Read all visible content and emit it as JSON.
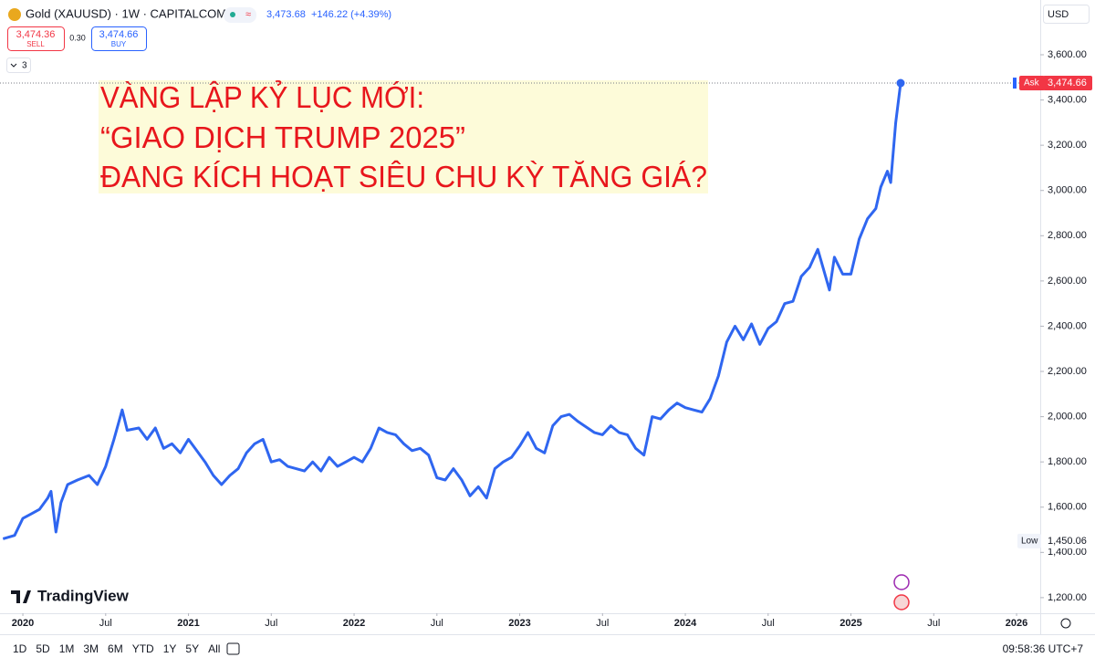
{
  "chart_data": {
    "type": "line",
    "title": "Gold (XAUUSD) · 1W · CAPITALCOM",
    "annotation": [
      "VÀNG LẬP KỶ LỤC MỚI:",
      "“GIAO DỊCH TRUMP 2025”",
      "ĐANG KÍCH HOẠT SIÊU CHU KỲ TĂNG GIÁ?"
    ],
    "currency": "USD",
    "x": [
      2019.88,
      2019.95,
      2020.0,
      2020.05,
      2020.1,
      2020.15,
      2020.17,
      2020.2,
      2020.23,
      2020.27,
      2020.33,
      2020.4,
      2020.45,
      2020.5,
      2020.55,
      2020.6,
      2020.63,
      2020.7,
      2020.75,
      2020.8,
      2020.85,
      2020.9,
      2020.95,
      2021.0,
      2021.05,
      2021.1,
      2021.15,
      2021.2,
      2021.25,
      2021.3,
      2021.35,
      2021.4,
      2021.45,
      2021.5,
      2021.55,
      2021.6,
      2021.7,
      2021.75,
      2021.8,
      2021.85,
      2021.9,
      2021.95,
      2022.0,
      2022.05,
      2022.1,
      2022.15,
      2022.2,
      2022.25,
      2022.3,
      2022.35,
      2022.4,
      2022.45,
      2022.5,
      2022.55,
      2022.6,
      2022.65,
      2022.7,
      2022.75,
      2022.8,
      2022.85,
      2022.9,
      2022.95,
      2023.0,
      2023.05,
      2023.1,
      2023.15,
      2023.2,
      2023.25,
      2023.3,
      2023.35,
      2023.45,
      2023.5,
      2023.55,
      2023.6,
      2023.65,
      2023.7,
      2023.75,
      2023.8,
      2023.85,
      2023.9,
      2023.95,
      2024.0,
      2024.05,
      2024.1,
      2024.15,
      2024.2,
      2024.25,
      2024.3,
      2024.35,
      2024.4,
      2024.45,
      2024.5,
      2024.55,
      2024.6,
      2024.65,
      2024.7,
      2024.75,
      2024.8,
      2024.87,
      2024.9,
      2024.95,
      2025.0,
      2025.05,
      2025.1,
      2025.15,
      2025.18,
      2025.22,
      2025.24,
      2025.27,
      2025.3
    ],
    "series": [
      {
        "color": "#2f66f0",
        "values": [
          1460,
          1475,
          1550,
          1570,
          1590,
          1640,
          1670,
          1490,
          1620,
          1700,
          1720,
          1740,
          1700,
          1780,
          1900,
          2030,
          1940,
          1950,
          1900,
          1950,
          1860,
          1880,
          1840,
          1900,
          1850,
          1800,
          1740,
          1700,
          1740,
          1770,
          1840,
          1880,
          1900,
          1800,
          1810,
          1780,
          1760,
          1800,
          1760,
          1820,
          1780,
          1800,
          1820,
          1800,
          1860,
          1950,
          1930,
          1920,
          1880,
          1850,
          1860,
          1830,
          1730,
          1720,
          1770,
          1720,
          1650,
          1690,
          1640,
          1770,
          1800,
          1820,
          1870,
          1930,
          1860,
          1840,
          1960,
          2000,
          2010,
          1980,
          1930,
          1920,
          1960,
          1930,
          1920,
          1860,
          1830,
          2000,
          1990,
          2030,
          2060,
          2040,
          2030,
          2020,
          2080,
          2180,
          2330,
          2400,
          2340,
          2410,
          2320,
          2390,
          2420,
          2500,
          2510,
          2620,
          2660,
          2740,
          2560,
          2705,
          2630,
          2630,
          2785,
          2875,
          2920,
          3015,
          3085,
          3035,
          3300,
          3474.66
        ]
      }
    ],
    "xlim": [
      2019.862,
      2026.143
    ],
    "ylim": [
      1131,
      3842
    ],
    "xticks": [
      2020,
      {
        "value": 2020.5,
        "label": "Jul"
      },
      2021,
      {
        "value": 2021.5,
        "label": "Jul"
      },
      2022,
      {
        "value": 2022.5,
        "label": "Jul"
      },
      2023,
      {
        "value": 2023.5,
        "label": "Jul"
      },
      2024,
      {
        "value": 2024.5,
        "label": "Jul"
      },
      2025,
      {
        "value": 2025.5,
        "label": "Jul"
      },
      2026
    ],
    "yticks": [
      {
        "value": 1200,
        "label": "1,200.00"
      },
      {
        "value": 1400,
        "label": "1,400.00"
      },
      {
        "value": 1600,
        "label": "1,600.00"
      },
      {
        "value": 1800,
        "label": "1,800.00"
      },
      {
        "value": 2000,
        "label": "2,000.00"
      },
      {
        "value": 2200,
        "label": "2,200.00"
      },
      {
        "value": 2400,
        "label": "2,400.00"
      },
      {
        "value": 2600,
        "label": "2,600.00"
      },
      {
        "value": 2800,
        "label": "2,800.00"
      },
      {
        "value": 3000,
        "label": "3,000.00"
      },
      {
        "value": 3200,
        "label": "3,200.00"
      },
      {
        "value": 3400,
        "label": "3,400.00"
      },
      {
        "value": 3600,
        "label": "3,600.00"
      }
    ],
    "grid": false,
    "price_line": {
      "name": "Ask",
      "value": 3474.66,
      "label": "3,474.66",
      "color": "#f23645"
    },
    "low_line": {
      "name": "Low",
      "value": 1450.06,
      "label": "1,450.06"
    }
  },
  "header": {
    "last": "3,473.68",
    "change": "+146.22 (+4.39%)",
    "sell": {
      "price": "3,474.36",
      "label": "SELL"
    },
    "spread": "0.30",
    "buy": {
      "price": "3,474.66",
      "label": "BUY"
    },
    "indicators": "3"
  },
  "brand": "TradingView",
  "toolbar": {
    "ranges": [
      "1D",
      "5D",
      "1M",
      "3M",
      "6M",
      "YTD",
      "1Y",
      "5Y",
      "All"
    ],
    "clock": "09:58:36 UTC+7"
  }
}
